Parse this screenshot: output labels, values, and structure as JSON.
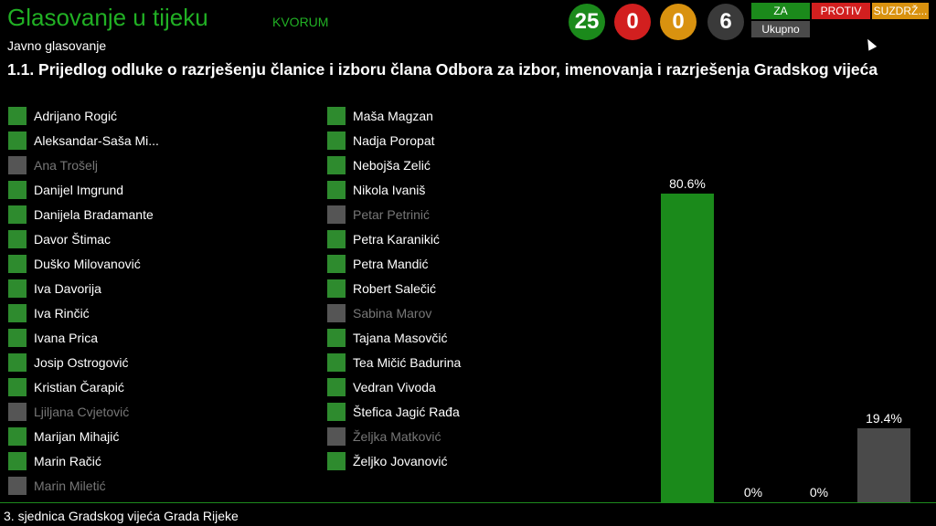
{
  "header": {
    "title": "Glasovanje u tijeku",
    "quorum": "KVORUM",
    "subtitle": "Javno glasovanje",
    "agenda_item": "1.1. Prijedlog odluke o razrješenju članice i izboru člana Odbora za izbor, imenovanja i razrješenja Gradskog vijeća"
  },
  "counters": [
    {
      "value": "25",
      "color": "#1b8a1b"
    },
    {
      "value": "0",
      "color": "#d21f1f"
    },
    {
      "value": "0",
      "color": "#d9920f"
    },
    {
      "value": "6",
      "color": "#3a3a3a"
    }
  ],
  "legend": {
    "za": "ZA",
    "protiv": "PROTIV",
    "suzdrz": "SUZDRŽ...",
    "ukupno": "Ukupno"
  },
  "members_left": [
    {
      "name": "Adrijano Rogić",
      "present": true
    },
    {
      "name": "Aleksandar-Saša Mi...",
      "present": true
    },
    {
      "name": "Ana Trošelj",
      "present": false
    },
    {
      "name": "Danijel Imgrund",
      "present": true
    },
    {
      "name": "Danijela Bradamante",
      "present": true
    },
    {
      "name": "Davor Štimac",
      "present": true
    },
    {
      "name": "Duško Milovanović",
      "present": true
    },
    {
      "name": "Iva Davorija",
      "present": true
    },
    {
      "name": "Iva Rinčić",
      "present": true
    },
    {
      "name": "Ivana Prica",
      "present": true
    },
    {
      "name": "Josip Ostrogović",
      "present": true
    },
    {
      "name": "Kristian Čarapić",
      "present": true
    },
    {
      "name": "Ljiljana Cvjetović",
      "present": false
    },
    {
      "name": "Marijan Mihajić",
      "present": true
    },
    {
      "name": "Marin Račić",
      "present": true
    },
    {
      "name": "Marin Miletić",
      "present": false
    }
  ],
  "members_right": [
    {
      "name": "Maša Magzan",
      "present": true
    },
    {
      "name": "Nadja Poropat",
      "present": true
    },
    {
      "name": "Nebojša Zelić",
      "present": true
    },
    {
      "name": "Nikola Ivaniš",
      "present": true
    },
    {
      "name": "Petar Petrinić",
      "present": false
    },
    {
      "name": "Petra Karanikić",
      "present": true
    },
    {
      "name": "Petra Mandić",
      "present": true
    },
    {
      "name": "Robert Salečić",
      "present": true
    },
    {
      "name": "Sabina Marov",
      "present": false
    },
    {
      "name": "Tajana Masovčić",
      "present": true
    },
    {
      "name": "Tea Mičić Badurina",
      "present": true
    },
    {
      "name": "Vedran Vivoda",
      "present": true
    },
    {
      "name": "Štefica Jagić Rađa",
      "present": true
    },
    {
      "name": "Željka Matković",
      "present": false
    },
    {
      "name": "Željko Jovanović",
      "present": true
    }
  ],
  "results": [
    {
      "label": "80.6%",
      "value": 80.6,
      "color": "#1b8a1b"
    },
    {
      "label": "0%",
      "value": 0,
      "color": "#d21f1f"
    },
    {
      "label": "0%",
      "value": 0,
      "color": "#d9920f"
    },
    {
      "label": "19.4%",
      "value": 19.4,
      "color": "#4a4a4a"
    }
  ],
  "footer": "3. sjednica Gradskog vijeća Grada Rijeke"
}
